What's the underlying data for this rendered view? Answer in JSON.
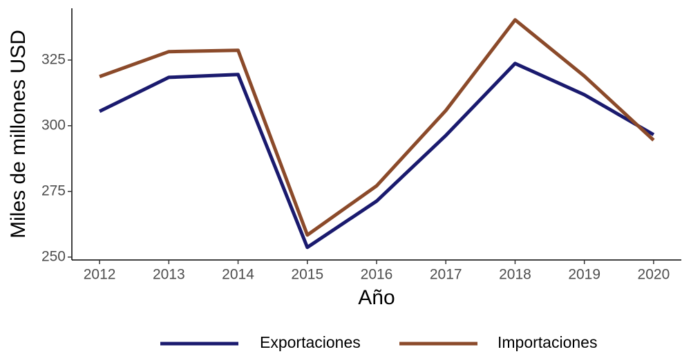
{
  "chart_data": {
    "type": "line",
    "xlabel": "Año",
    "ylabel": "Miles de millones USD",
    "x": [
      2012,
      2013,
      2014,
      2015,
      2016,
      2017,
      2018,
      2019,
      2020
    ],
    "series": [
      {
        "name": "Exportaciones",
        "color": "#1a1a6e",
        "values": [
          305.5,
          318.4,
          319.5,
          253.7,
          271.3,
          296.3,
          323.7,
          311.8,
          296.6
        ]
      },
      {
        "name": "Importaciones",
        "color": "#8b4a2a",
        "values": [
          318.7,
          328.2,
          328.7,
          258.4,
          277.1,
          305.8,
          340.3,
          318.9,
          294.5
        ]
      }
    ],
    "xlim": [
      2011.6,
      2020.4
    ],
    "xticks": [
      2012,
      2013,
      2014,
      2015,
      2016,
      2017,
      2018,
      2019,
      2020
    ],
    "ylim": [
      248.9,
      344.7
    ],
    "yticks": [
      250,
      275,
      300,
      325
    ],
    "legend": "bottom"
  }
}
